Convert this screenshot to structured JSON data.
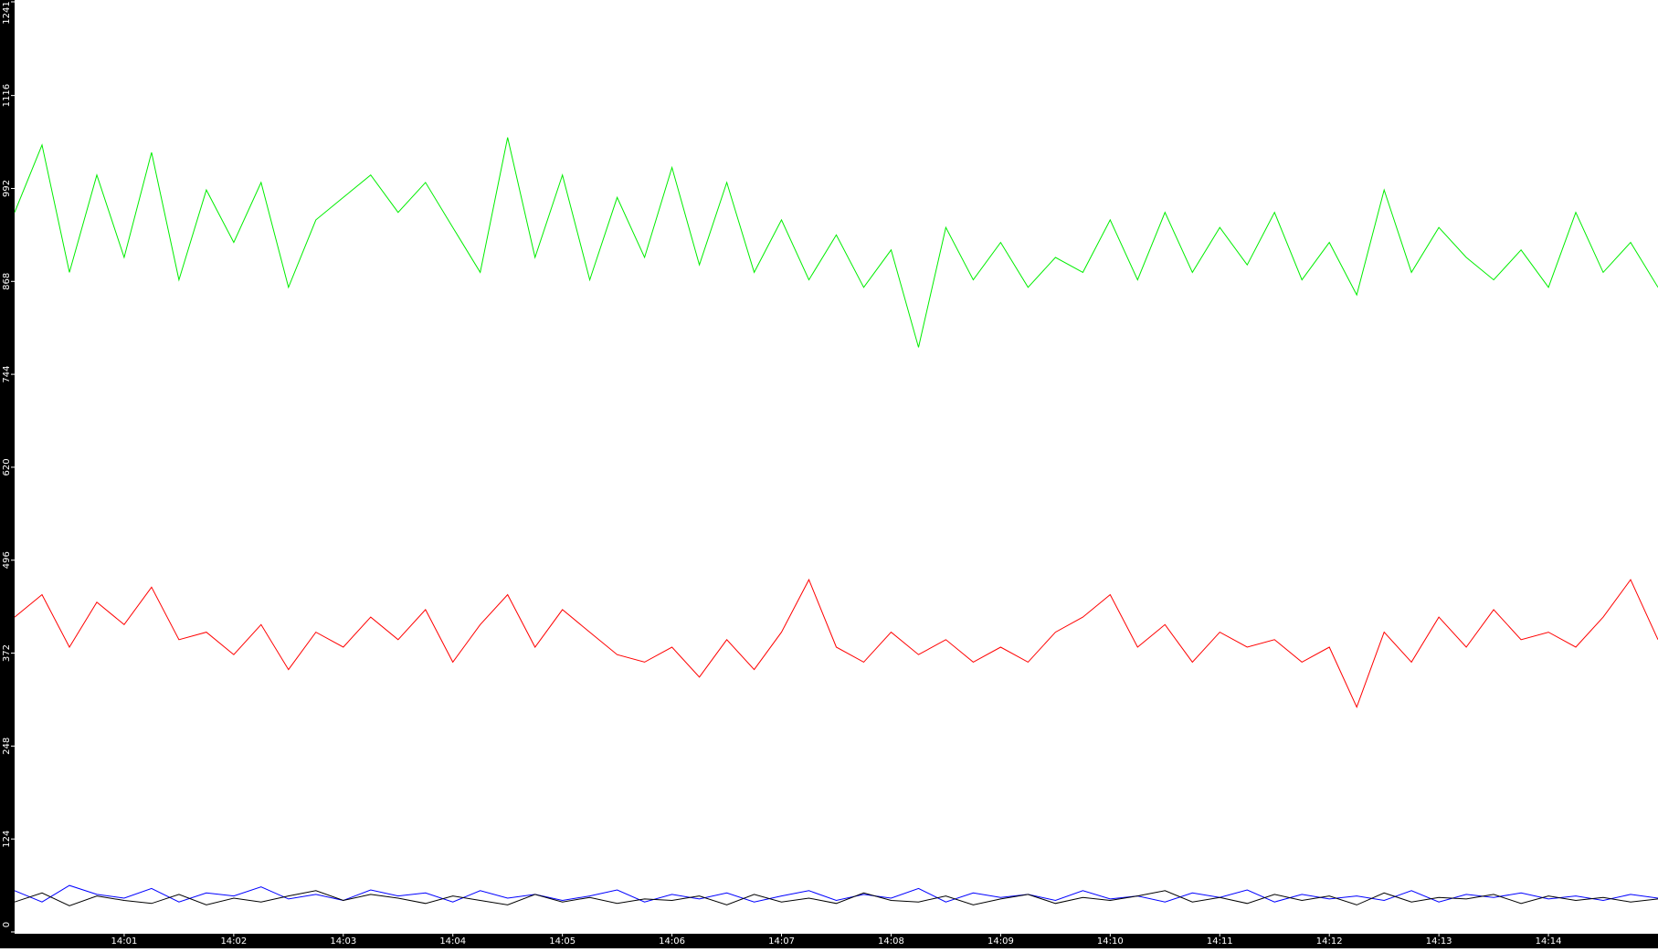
{
  "chart_data": {
    "type": "line",
    "x": [
      0,
      15,
      30,
      45,
      60,
      75,
      90,
      105,
      120,
      135,
      150,
      165,
      180,
      195,
      210,
      225,
      240,
      255,
      270,
      285,
      300,
      315,
      330,
      345,
      360,
      375,
      390,
      405,
      420,
      435,
      450,
      465,
      480,
      495,
      510,
      525,
      540,
      555,
      570,
      585,
      600,
      615,
      630,
      645,
      660,
      675,
      690,
      705,
      720,
      735,
      750,
      765,
      780,
      795,
      810,
      825,
      840,
      855,
      870,
      885,
      900
    ],
    "series": [
      {
        "color": "#00ee00",
        "values": [
          960,
          1050,
          880,
          1010,
          900,
          1040,
          870,
          990,
          920,
          1000,
          860,
          950,
          980,
          1010,
          960,
          1000,
          940,
          880,
          1060,
          900,
          1010,
          870,
          980,
          900,
          1020,
          890,
          1000,
          880,
          950,
          870,
          930,
          860,
          910,
          780,
          940,
          870,
          920,
          860,
          900,
          880,
          950,
          870,
          960,
          880,
          940,
          890,
          960,
          870,
          920,
          850,
          990,
          880,
          940,
          900,
          870,
          910,
          860,
          960,
          880,
          920,
          860
        ]
      },
      {
        "color": "#ff0000",
        "values": [
          420,
          450,
          380,
          440,
          410,
          460,
          390,
          400,
          370,
          410,
          350,
          400,
          380,
          420,
          390,
          430,
          360,
          410,
          450,
          380,
          430,
          400,
          370,
          360,
          380,
          340,
          390,
          350,
          400,
          470,
          380,
          360,
          400,
          370,
          390,
          360,
          380,
          360,
          400,
          420,
          450,
          380,
          410,
          360,
          400,
          380,
          390,
          360,
          380,
          300,
          400,
          360,
          420,
          380,
          430,
          390,
          400,
          380,
          420,
          470,
          390
        ]
      },
      {
        "color": "#0000ff",
        "values": [
          55,
          40,
          62,
          50,
          45,
          58,
          40,
          52,
          48,
          60,
          44,
          50,
          42,
          56,
          48,
          52,
          40,
          55,
          45,
          50,
          42,
          48,
          56,
          40,
          50,
          44,
          52,
          40,
          48,
          55,
          42,
          50,
          45,
          58,
          40,
          52,
          46,
          50,
          42,
          55,
          44,
          48,
          40,
          52,
          46,
          56,
          40,
          50,
          44,
          48,
          42,
          55,
          40,
          50,
          46,
          52,
          44,
          48,
          42,
          50,
          45
        ]
      },
      {
        "color": "#000000",
        "values": [
          40,
          52,
          35,
          48,
          42,
          38,
          50,
          36,
          45,
          40,
          48,
          55,
          42,
          50,
          45,
          38,
          48,
          42,
          36,
          50,
          40,
          46,
          38,
          44,
          42,
          48,
          36,
          50,
          40,
          45,
          38,
          52,
          42,
          40,
          48,
          36,
          44,
          50,
          38,
          46,
          42,
          48,
          55,
          40,
          46,
          38,
          50,
          42,
          48,
          36,
          52,
          40,
          46,
          44,
          50,
          38,
          48,
          42,
          46,
          40,
          44
        ]
      }
    ],
    "xlim": [
      0,
      900
    ],
    "xticks": [
      {
        "value": 60,
        "label": "14:01"
      },
      {
        "value": 120,
        "label": "14:02"
      },
      {
        "value": 180,
        "label": "14:03"
      },
      {
        "value": 240,
        "label": "14:04"
      },
      {
        "value": 300,
        "label": "14:05"
      },
      {
        "value": 360,
        "label": "14:06"
      },
      {
        "value": 420,
        "label": "14:07"
      },
      {
        "value": 480,
        "label": "14:08"
      },
      {
        "value": 540,
        "label": "14:09"
      },
      {
        "value": 600,
        "label": "14:10"
      },
      {
        "value": 660,
        "label": "14:11"
      },
      {
        "value": 720,
        "label": "14:12"
      },
      {
        "value": 780,
        "label": "14:13"
      },
      {
        "value": 840,
        "label": "14:14"
      }
    ],
    "ylim": [
      0,
      1241
    ],
    "yticks": [
      0,
      124,
      248,
      372,
      496,
      620,
      744,
      868,
      992,
      1116,
      1241
    ]
  }
}
